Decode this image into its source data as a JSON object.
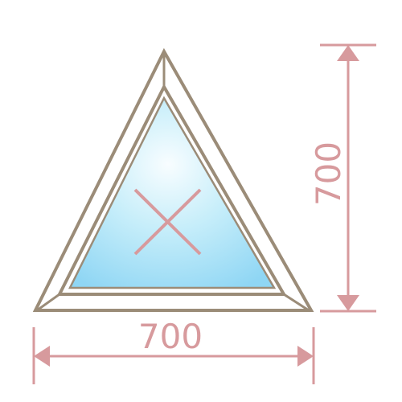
{
  "window": {
    "shape": "triangular fixed window",
    "frame_color": "#9b8c78",
    "frame_fill": "#ffffff",
    "glass_light": "#f8fdff",
    "glass_mid": "#c7eefa",
    "glass_edge": "#8fd6f4",
    "opening_symbol": "x-mark-fixed"
  },
  "dimensions": {
    "color": "#d79a9d",
    "width_label": "700",
    "height_label": "700"
  }
}
